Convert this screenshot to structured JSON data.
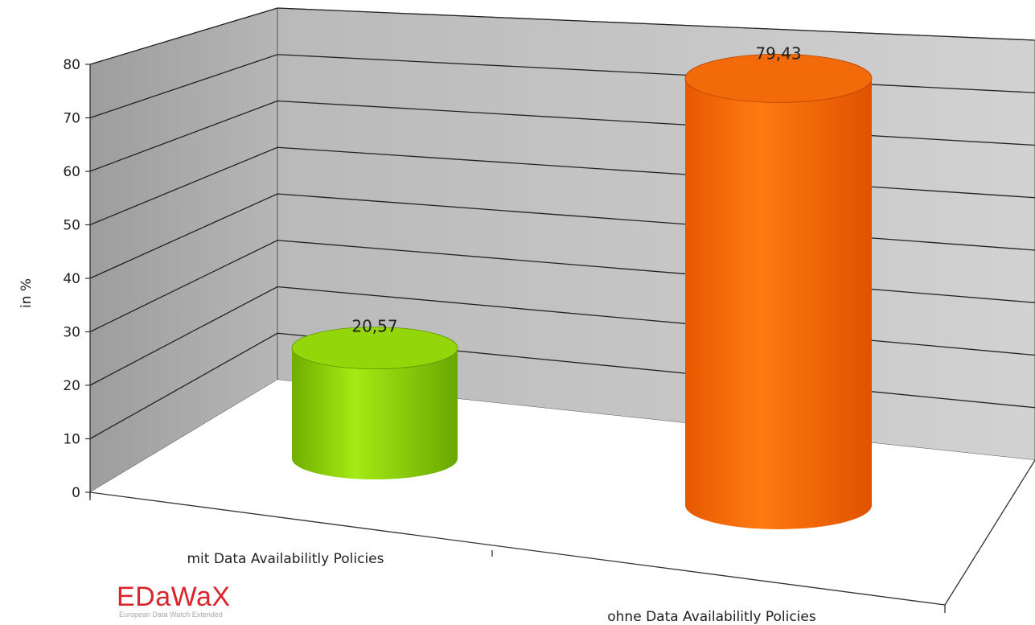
{
  "chart_data": {
    "type": "bar",
    "subtype": "3d-cylinder",
    "categories": [
      "mit Data Availabilitly Policies",
      "ohne Data Availabilitly Policies"
    ],
    "values": [
      20.57,
      79.43
    ],
    "data_labels": [
      "20,57",
      "79,43"
    ],
    "ylabel": "in %",
    "ylim": [
      0,
      80
    ],
    "yticks": [
      0,
      10,
      20,
      30,
      40,
      50,
      60,
      70,
      80
    ],
    "grid": true,
    "legend": "none",
    "colors": {
      "bar_mit": "#8cd400",
      "bar_ohne": "#ff6a00",
      "walls": "#c4c4c4",
      "floor": "#ffffff",
      "gridline": "#222222"
    }
  },
  "logo": {
    "title": "EDaWaX",
    "subtitle": "European Data Watch Extended"
  }
}
